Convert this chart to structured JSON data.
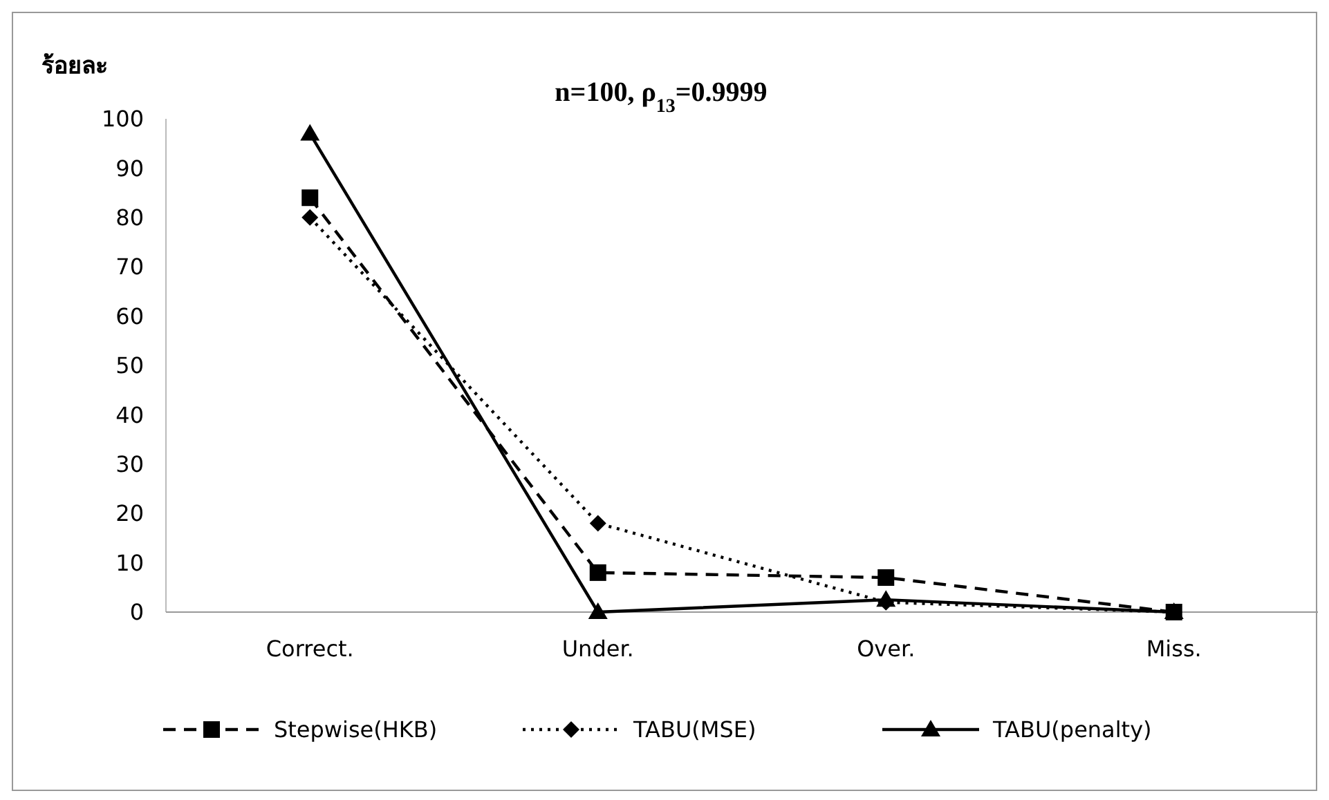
{
  "chart_data": {
    "type": "line",
    "title": "n=100, ρ$_{13}$=0.9999",
    "ylabel": "ร้อยละ",
    "categories": [
      "Correct.",
      "Under.",
      "Over.",
      "Miss."
    ],
    "series": [
      {
        "name": "Stepwise(HKB)",
        "color": "#000000",
        "values": [
          84,
          8,
          7,
          0
        ],
        "marker": "square",
        "line_style": "dashed"
      },
      {
        "name": "TABU(MSE)",
        "color": "#000000",
        "values": [
          80,
          18,
          2,
          0
        ],
        "marker": "diamond",
        "line_style": "dotted"
      },
      {
        "name": "TABU(penalty)",
        "color": "#000000",
        "values": [
          97,
          0,
          2.5,
          0
        ],
        "marker": "triangle",
        "line_style": "solid"
      }
    ],
    "ylim": [
      0,
      100
    ],
    "yticks": [
      0,
      10,
      20,
      30,
      40,
      50,
      60,
      70,
      80,
      90,
      100
    ],
    "grid": false,
    "legend": "bottom"
  }
}
